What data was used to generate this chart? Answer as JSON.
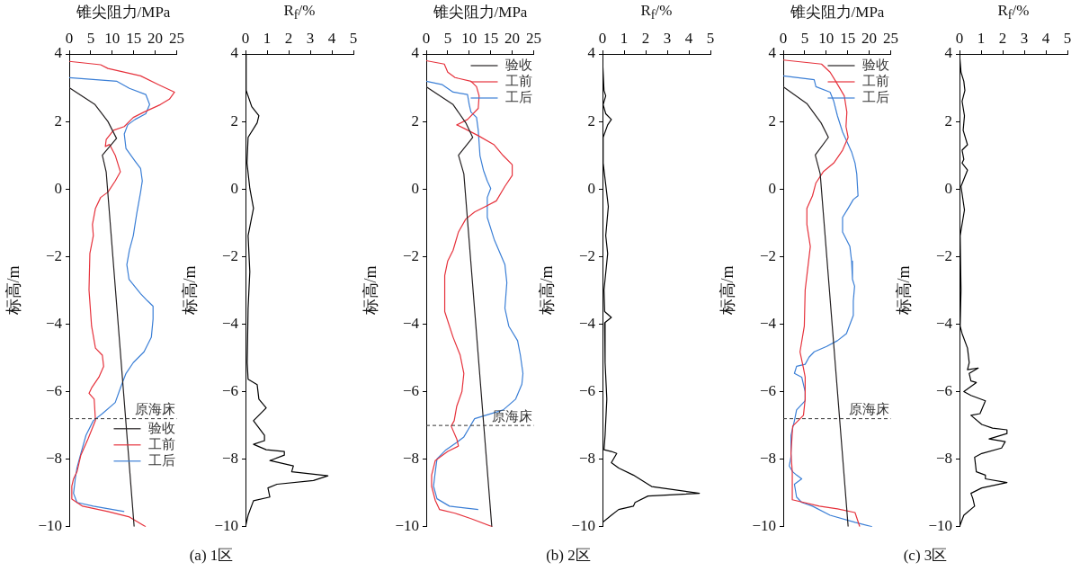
{
  "chart_data": [
    {
      "type": "line",
      "xlabel": "锥尖阻力/MPa",
      "ylabel": "标高/m",
      "xlim": [
        0,
        25
      ],
      "xticks": [
        0,
        5,
        10,
        15,
        20,
        25
      ],
      "ylim": [
        -10,
        4
      ],
      "yticks": [
        -10,
        -8,
        -6,
        -4,
        -2,
        0,
        2,
        4
      ],
      "legend": "bottom right",
      "annotations": [
        "(a) 1区"
      ],
      "ref_lines": [
        {
          "axis": "y",
          "value": -6.8,
          "label": "原海床",
          "line_style": "dashed"
        }
      ],
      "series": [
        {
          "name": "验收",
          "color": "#231f20",
          "x": [
            0,
            6,
            9,
            11,
            7.7,
            8.6,
            15.1
          ],
          "values": [
            3.0,
            2.5,
            2.0,
            1.5,
            1.0,
            0.5,
            -10
          ]
        },
        {
          "name": "工前",
          "color": "#e6323c",
          "x": [
            0,
            7.3,
            9,
            16.6,
            20.8,
            24.5,
            23.3,
            21.2,
            17.4,
            14.9,
            12.8,
            10.3,
            8.6,
            8.4,
            9.4,
            10.7,
            11.9,
            10.7,
            9,
            7.3,
            6.1,
            5.4,
            5.6,
            4.8,
            4.6,
            5.2,
            6.1,
            7.7,
            8,
            6.9,
            5.2,
            4.6,
            5.8,
            6.1,
            4.4,
            2.7,
            1.8,
            1.0,
            0.6,
            0.6,
            3.1,
            9,
            14,
            17.8
          ],
          "values": [
            3.78,
            3.68,
            3.57,
            3.35,
            3.09,
            2.87,
            2.66,
            2.5,
            2.28,
            2.12,
            1.85,
            1.74,
            1.47,
            1.26,
            1.32,
            1.0,
            0.51,
            0.24,
            -0.09,
            -0.25,
            -0.57,
            -1.05,
            -1.38,
            -1.91,
            -2.99,
            -4.06,
            -4.71,
            -4.92,
            -5.25,
            -5.57,
            -5.89,
            -6.05,
            -6.22,
            -6.85,
            -7.39,
            -7.88,
            -8.37,
            -8.58,
            -8.8,
            -9.18,
            -9.39,
            -9.55,
            -9.71,
            -10
          ]
        },
        {
          "name": "工后",
          "color": "#3b7fd6",
          "x": [
            0,
            11.1,
            14,
            17.8,
            18.7,
            17.8,
            15.3,
            13.6,
            12.8,
            13.2,
            15.3,
            16.6,
            17,
            16.6,
            15.7,
            14.9,
            14,
            13.4,
            13.9,
            16.6,
            18.2,
            19.5,
            19.5,
            19.1,
            17.4,
            14.9,
            13.2,
            11.9,
            10.7,
            7.7,
            5.6,
            3.9,
            2.7,
            1.8,
            1.4,
            1.0,
            1.8,
            5.6,
            12.8
          ],
          "values": [
            3.3,
            3.19,
            2.98,
            2.8,
            2.5,
            2.23,
            2.06,
            1.9,
            1.63,
            1.2,
            0.83,
            0.61,
            0.24,
            -0.09,
            -0.73,
            -1.38,
            -1.81,
            -2.24,
            -2.67,
            -3.1,
            -3.31,
            -3.47,
            -3.85,
            -4.39,
            -4.82,
            -5.14,
            -5.46,
            -5.89,
            -6.32,
            -6.65,
            -6.86,
            -7.29,
            -7.83,
            -8.26,
            -8.58,
            -9.01,
            -9.28,
            -9.39,
            -9.55
          ]
        }
      ]
    },
    {
      "type": "line",
      "xlabel": "R$_{f}$/%",
      "ylabel": "标高/m",
      "xlim": [
        0,
        5
      ],
      "xticks": [
        0,
        1,
        2,
        3,
        4,
        5
      ],
      "ylim": [
        -10,
        4
      ],
      "yticks": [
        -10,
        -8,
        -6,
        -4,
        -2,
        0,
        2,
        4
      ],
      "series": [
        {
          "color": "#000000",
          "x": [
            0,
            0.03,
            0.29,
            0.62,
            0.54,
            0.12,
            0.07,
            0.2,
            0.37,
            0.12,
            0.2,
            0.12,
            0.08,
            0.12,
            0.54,
            0.62,
            0.96,
            0.37,
            0.88,
            0.88,
            0.37,
            0.96,
            1.8,
            1.8,
            1.13,
            2.22,
            2.14,
            3.82,
            3.15,
            1.46,
            1.04,
            1.13,
            0.37,
            0.12,
            0
          ],
          "values": [
            4,
            2.92,
            2.44,
            2.17,
            1.96,
            1.53,
            0.77,
            0.02,
            -0.57,
            -1.38,
            -2.45,
            -3.53,
            -5.14,
            -5.63,
            -5.79,
            -6.22,
            -6.48,
            -6.86,
            -7.29,
            -7.45,
            -7.56,
            -7.72,
            -7.77,
            -7.88,
            -8.04,
            -8.2,
            -8.37,
            -8.49,
            -8.63,
            -8.74,
            -8.85,
            -9.12,
            -9.23,
            -9.66,
            -10
          ]
        }
      ]
    },
    {
      "type": "line",
      "xlabel": "锥尖阻力/MPa",
      "ylabel": "标高/m",
      "xlim": [
        0,
        25
      ],
      "xticks": [
        0,
        5,
        10,
        15,
        20,
        25
      ],
      "ylim": [
        -10,
        4
      ],
      "yticks": [
        -10,
        -8,
        -6,
        -4,
        -2,
        0,
        2,
        4
      ],
      "legend": "top right",
      "annotations": [
        "(b) 2区"
      ],
      "ref_lines": [
        {
          "axis": "y",
          "value": -7.0,
          "label": "原海床",
          "line_style": "dashed"
        }
      ],
      "series": [
        {
          "name": "验收",
          "color": "#231f20",
          "x": [
            0,
            6.25,
            9.2,
            10.8,
            7.5,
            8.75,
            15.25
          ],
          "values": [
            3.03,
            2.5,
            1.96,
            1.53,
            1.0,
            0.45,
            -10
          ]
        },
        {
          "name": "工前",
          "color": "#e6323c",
          "x": [
            0,
            4.2,
            5,
            6.7,
            10.4,
            11.7,
            12.3,
            12.1,
            9.6,
            7.1,
            8.75,
            12.1,
            15.8,
            17.9,
            20,
            20,
            18.3,
            16.3,
            13.75,
            11.25,
            9.2,
            7.5,
            6.25,
            5,
            4.3,
            4.3,
            6.25,
            7.9,
            8.75,
            8.3,
            7.1,
            6.5,
            5.8,
            7.1,
            7.5,
            5,
            2.1,
            1.25,
            1.25,
            2.1,
            3.1,
            6.7,
            10.4,
            15.4
          ],
          "values": [
            3.8,
            3.7,
            3.46,
            3.3,
            3.19,
            3.03,
            2.76,
            2.39,
            2.06,
            1.9,
            1.8,
            1.58,
            1.31,
            0.99,
            0.72,
            0.4,
            0.08,
            -0.35,
            -0.52,
            -0.68,
            -0.89,
            -1.27,
            -1.81,
            -2.13,
            -2.56,
            -3.63,
            -4.39,
            -4.92,
            -5.46,
            -6,
            -6.43,
            -6.86,
            -7.02,
            -7.4,
            -7.61,
            -7.77,
            -8.04,
            -8.47,
            -8.8,
            -9.22,
            -9.49,
            -9.6,
            -9.76,
            -10
          ]
        },
        {
          "name": "工后",
          "color": "#3b7fd6",
          "x": [
            0,
            3.75,
            6.25,
            9.6,
            10,
            10.4,
            11.7,
            12.1,
            12.5,
            13.3,
            14.2,
            15,
            14.2,
            14.2,
            15.8,
            18.3,
            18.75,
            18.3,
            19.2,
            21.25,
            21.9,
            22.5,
            22.25,
            20.8,
            17.9,
            11.25,
            10,
            8.75,
            7.1,
            4.6,
            2.5,
            2.1,
            1.7,
            2.5,
            5.4,
            12.1
          ],
          "values": [
            3.19,
            3.09,
            2.87,
            2.8,
            2.5,
            2.28,
            2.12,
            1.74,
            0.99,
            0.56,
            0.24,
            0.02,
            -0.25,
            -0.84,
            -1.49,
            -2.24,
            -2.77,
            -3.53,
            -4.06,
            -4.49,
            -4.92,
            -5.46,
            -5.78,
            -6.22,
            -6.54,
            -6.8,
            -7.07,
            -7.34,
            -7.5,
            -7.72,
            -7.99,
            -8.37,
            -8.8,
            -9.17,
            -9.39,
            -9.49
          ]
        }
      ]
    },
    {
      "type": "line",
      "xlabel": "R$_{f}$/%",
      "ylabel": "标高/m",
      "xlim": [
        0,
        5
      ],
      "xticks": [
        0,
        1,
        2,
        3,
        4,
        5
      ],
      "ylim": [
        -10,
        4
      ],
      "yticks": [
        -10,
        -8,
        -6,
        -4,
        -2,
        0,
        2,
        4
      ],
      "series": [
        {
          "color": "#000000",
          "x": [
            0,
            0.07,
            0.15,
            0.03,
            0.15,
            0.41,
            0.24,
            0.03,
            0.03,
            0.15,
            0.27,
            0.15,
            0.24,
            0.07,
            0.1,
            0.41,
            0.1,
            0.12,
            0.2,
            0.12,
            0.07,
            0.41,
            0.66,
            0.41,
            0.75,
            1.43,
            2.11,
            2.28,
            4.49,
            2.11,
            1.51,
            1.43,
            0.75,
            0.41,
            0
          ],
          "values": [
            3.84,
            2.92,
            2.76,
            2.5,
            2.23,
            2.06,
            1.9,
            1.53,
            0.77,
            0.13,
            -0.52,
            -1.38,
            -1.91,
            -2.99,
            -3.63,
            -3.8,
            -3.96,
            -5.14,
            -6.22,
            -7.29,
            -7.72,
            -7.77,
            -7.83,
            -8.1,
            -8.26,
            -8.47,
            -8.74,
            -8.81,
            -9.01,
            -9.09,
            -9.28,
            -9.39,
            -9.49,
            -9.66,
            -9.87
          ]
        }
      ]
    },
    {
      "type": "line",
      "xlabel": "锥尖阻力/MPa",
      "ylabel": "标高/m",
      "xlim": [
        0,
        25
      ],
      "xticks": [
        0,
        5,
        10,
        15,
        20,
        25
      ],
      "ylim": [
        -10,
        4
      ],
      "yticks": [
        -10,
        -8,
        -6,
        -4,
        -2,
        0,
        2,
        4
      ],
      "legend": "top right",
      "annotations": [
        "(c) 3区"
      ],
      "ref_lines": [
        {
          "axis": "y",
          "value": -6.8,
          "label": "原海床",
          "line_style": "dashed"
        }
      ],
      "series": [
        {
          "name": "验收",
          "color": "#231f20",
          "x": [
            0,
            5.5,
            8.8,
            10.5,
            7.45,
            8.6,
            15.1
          ],
          "values": [
            3.03,
            2.53,
            1.96,
            1.53,
            1.01,
            0.45,
            -10
          ]
        },
        {
          "name": "工前",
          "color": "#e6323c",
          "x": [
            0,
            8.9,
            10.9,
            12.2,
            14.2,
            14.8,
            14.6,
            15.1,
            13.8,
            11.75,
            9.3,
            7.6,
            6.8,
            5.5,
            5.5,
            6.3,
            5.1,
            4.9,
            3.9,
            4.7,
            5.1,
            5.1,
            4.7,
            2.2,
            1.8,
            2.1,
            2.1,
            8.4,
            12.6,
            16.7,
            17.8
          ],
          "values": [
            3.82,
            3.7,
            3.46,
            3.19,
            2.76,
            2.28,
            1.85,
            1.53,
            1.15,
            0.77,
            0.51,
            0.18,
            -0.2,
            -0.57,
            -1.05,
            -1.7,
            -2.99,
            -4.06,
            -4.82,
            -5.3,
            -5.57,
            -6.22,
            -6.7,
            -7.02,
            -7.83,
            -8.37,
            -9.2,
            -9.39,
            -9.47,
            -9.58,
            -10
          ]
        },
        {
          "name": "工后",
          "color": "#3b7fd6",
          "x": [
            0,
            7.2,
            7.6,
            10.9,
            11.75,
            12.6,
            13.8,
            15.9,
            16.7,
            17.1,
            17.4,
            16.3,
            15.1,
            13.8,
            13.8,
            15.5,
            15.9,
            16.1,
            16.6,
            16.3,
            16.3,
            14.7,
            12.6,
            10.1,
            7.2,
            6,
            5.1,
            3.1,
            2.6,
            4.3,
            5.1,
            5.1,
            3.1,
            2.6,
            1.8,
            1.8,
            1.4,
            2.2,
            3.1,
            4.3,
            2.6,
            3.1,
            4.3,
            6.8,
            10.9,
            16.7,
            20.7
          ],
          "values": [
            3.35,
            3.24,
            3.03,
            2.87,
            2.6,
            2.17,
            1.69,
            1.1,
            0.77,
            0.45,
            -0.2,
            -0.31,
            -0.57,
            -0.84,
            -1.27,
            -1.7,
            -2.13,
            -2.67,
            -2.88,
            -3.31,
            -3.74,
            -4.28,
            -4.49,
            -4.66,
            -4.82,
            -4.98,
            -5.19,
            -5.25,
            -5.46,
            -5.57,
            -6,
            -6.27,
            -6.54,
            -6.86,
            -7.29,
            -7.93,
            -8.2,
            -8.37,
            -8.47,
            -8.58,
            -8.74,
            -9.12,
            -9.28,
            -9.39,
            -9.66,
            -9.87,
            -10
          ]
        }
      ]
    },
    {
      "type": "line",
      "xlabel": "R$_{f}$/%",
      "ylabel": "标高/m",
      "xlim": [
        0,
        5
      ],
      "xticks": [
        0,
        1,
        2,
        3,
        4,
        5
      ],
      "ylim": [
        -10,
        4
      ],
      "yticks": [
        -10,
        -8,
        -6,
        -4,
        -2,
        0,
        2,
        4
      ],
      "series": [
        {
          "color": "#000000",
          "x": [
            0,
            0.07,
            0.2,
            0.25,
            0.12,
            0.23,
            0.17,
            0.37,
            0.12,
            0.2,
            0.12,
            0.37,
            0.07,
            0.23,
            0.03,
            0.07,
            0.03,
            0.12,
            0.37,
            0.45,
            0.37,
            0.87,
            0.45,
            0.53,
            0.78,
            0.2,
            0.53,
            1.2,
            0.95,
            0.53,
            1.03,
            1.53,
            2.2,
            2.2,
            1.37,
            2.12,
            1.95,
            1.03,
            0.7,
            0.78,
            1.2,
            1.2,
            2.2,
            1.03,
            0.53,
            0.62,
            0.7,
            0.2,
            0
          ],
          "values": [
            4,
            3.46,
            3.19,
            2.92,
            2.6,
            2.17,
            1.74,
            1.31,
            1.15,
            0.88,
            0.77,
            0.56,
            0.08,
            -0.62,
            -1.38,
            -2.99,
            -4.06,
            -4.28,
            -4.71,
            -5.14,
            -5.35,
            -5.3,
            -5.46,
            -5.68,
            -5.73,
            -6,
            -6.11,
            -6.27,
            -6.65,
            -6.7,
            -6.97,
            -7.08,
            -7.13,
            -7.24,
            -7.4,
            -7.48,
            -7.67,
            -7.83,
            -7.94,
            -8.37,
            -8.47,
            -8.58,
            -8.69,
            -8.85,
            -9.01,
            -9.17,
            -9.39,
            -9.66,
            -10
          ]
        }
      ]
    }
  ]
}
